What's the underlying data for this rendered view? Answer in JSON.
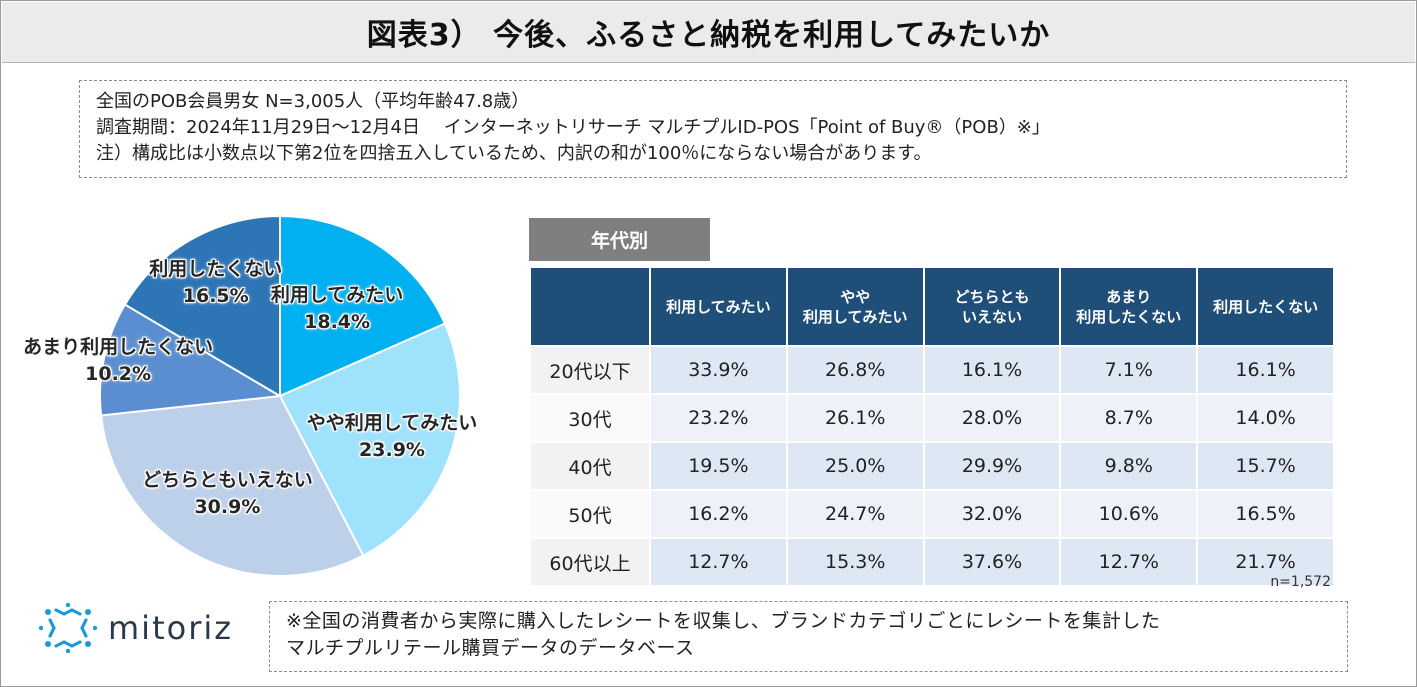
{
  "title": "図表3） 今後、ふるさと納税を利用してみたいか",
  "info": {
    "line1": "全国のPOB会員男女 N=3,005人（平均年齢47.8歳）",
    "line2": "調査期間：2024年11月29日～12月4日　 インターネットリサーチ マルチプルID-POS「Point of Buy®（POB）※」",
    "line3": "注）構成比は小数点以下第2位を四捨五入しているため、内訳の和が100％にならない場合があります。"
  },
  "chart_data": [
    {
      "type": "pie",
      "title": "",
      "slices": [
        {
          "label": "利用してみたい",
          "value": 18.4,
          "value_text": "18.4%",
          "color": "#00b0f0"
        },
        {
          "label": "やや利用してみたい",
          "value": 23.9,
          "value_text": "23.9%",
          "color": "#9fe2fb"
        },
        {
          "label": "どちらともいえない",
          "value": 30.9,
          "value_text": "30.9%",
          "color": "#bdd0ea"
        },
        {
          "label": "あまり利用したくない",
          "value": 10.2,
          "value_text": "10.2%",
          "color": "#5b8ed0"
        },
        {
          "label": "利用したくない",
          "value": 16.5,
          "value_text": "16.5%",
          "color": "#2e75b6"
        }
      ],
      "start": "12 o'clock",
      "direction": "clockwise"
    },
    {
      "type": "table",
      "title": "年代別",
      "columns": [
        [
          "利用してみたい"
        ],
        [
          "やや",
          "利用してみたい"
        ],
        [
          "どちらとも",
          "いえない"
        ],
        [
          "あまり",
          "利用したくない"
        ],
        [
          "利用したくない"
        ]
      ],
      "rows": [
        {
          "label": "20代以下",
          "values": [
            "33.9%",
            "26.8%",
            "16.1%",
            "7.1%",
            "16.1%"
          ]
        },
        {
          "label": "30代",
          "values": [
            "23.2%",
            "26.1%",
            "28.0%",
            "8.7%",
            "14.0%"
          ]
        },
        {
          "label": "40代",
          "values": [
            "19.5%",
            "25.0%",
            "29.9%",
            "9.8%",
            "15.7%"
          ]
        },
        {
          "label": "50代",
          "values": [
            "16.2%",
            "24.7%",
            "32.0%",
            "10.6%",
            "16.5%"
          ]
        },
        {
          "label": "60代以上",
          "values": [
            "12.7%",
            "15.3%",
            "37.6%",
            "12.7%",
            "21.7%"
          ]
        }
      ],
      "note": "n=1,572"
    }
  ],
  "logo": {
    "text": "mitoriz",
    "icon": "mitoriz-logo-icon",
    "color": "#1a9ad6"
  },
  "footnote": {
    "line1": "※全国の消費者から実際に購入したレシートを収集し、ブランドカテゴリごとにレシートを集計した",
    "line2": "マルチプルリテール購買データのデータベース"
  }
}
